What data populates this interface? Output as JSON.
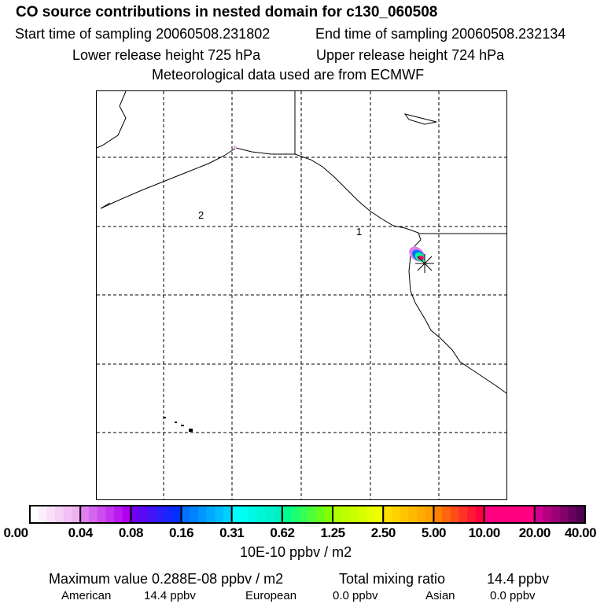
{
  "header": {
    "title": "CO  source contributions in nested domain for c130_060508",
    "start": "Start time of sampling 20060508.231802",
    "end": "End time of sampling 20060508.232134",
    "lower": "Lower release height  725 hPa",
    "upper": "Upper release height  724 hPa",
    "met": "Meteorological data used are from ECMWF"
  },
  "map": {
    "label1": "1",
    "label2": "2"
  },
  "colorbar": {
    "ticks": [
      "0.00",
      "0.04",
      "0.08",
      "0.16",
      "0.31",
      "0.62",
      "1.25",
      "2.50",
      "5.00",
      "10.00",
      "20.00",
      "40.00"
    ],
    "unit": "10E-10 ppbv / m2",
    "groups": [
      [
        "#ffffff",
        "#f0b0f0"
      ],
      [
        "#e080f0",
        "#b000f0"
      ],
      [
        "#7000f0",
        "#0030ff"
      ],
      [
        "#0070ff",
        "#00d0ff"
      ],
      [
        "#00ffff",
        "#00f0c0"
      ],
      [
        "#00ff90",
        "#80ff00"
      ],
      [
        "#b0ff00",
        "#f0ff00"
      ],
      [
        "#ffe000",
        "#ffa000"
      ],
      [
        "#ff8000",
        "#ff0040"
      ],
      [
        "#ff0080",
        "#ff0080"
      ],
      [
        "#d00090",
        "#500050"
      ]
    ]
  },
  "footer": {
    "max_label": "Maximum value  0.288E-08 ppbv / m2",
    "total_label": "Total mixing ratio",
    "total_value": "14.4 ppbv",
    "american_label": "American",
    "american_value": "14.4 ppbv",
    "european_label": "European",
    "european_value": "0.0 ppbv",
    "asian_label": "Asian",
    "asian_value": "0.0 ppbv"
  }
}
